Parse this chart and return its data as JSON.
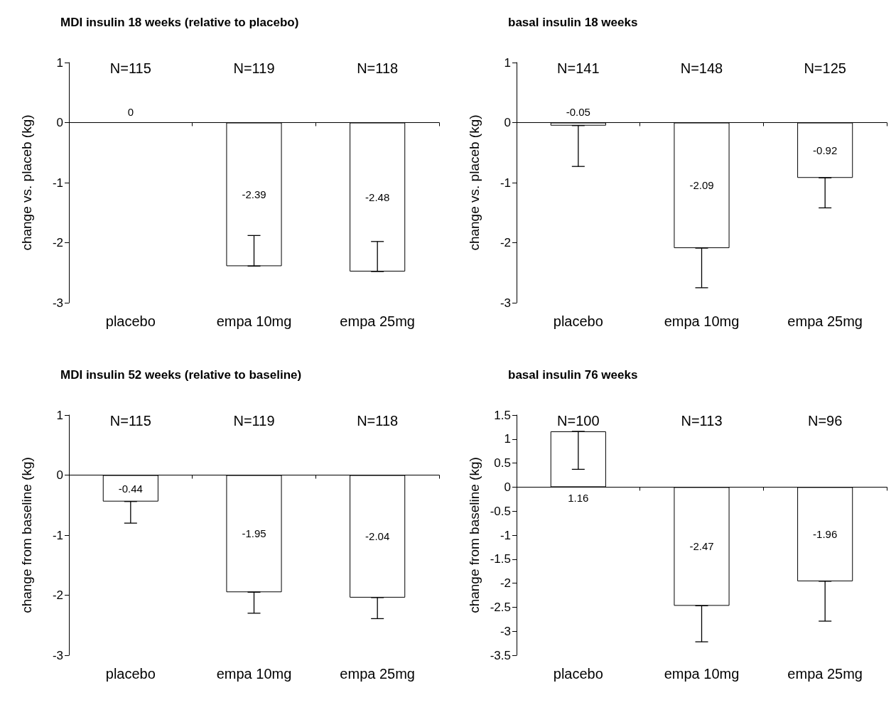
{
  "chart_data": [
    {
      "type": "bar",
      "title": "MDI insulin 18 weeks (relative to placebo)",
      "ylabel": "change vs. placeb (kg)",
      "categories": [
        "placebo",
        "empa 10mg",
        "empa 25mg"
      ],
      "values": [
        0,
        -2.39,
        -2.48
      ],
      "errors": [
        null,
        [
          -2.39,
          -1.88
        ],
        [
          -2.48,
          -1.98
        ]
      ],
      "color": "#ffffff",
      "ylim": [
        -3,
        1
      ],
      "yticks": [
        -3,
        -2,
        -1,
        0,
        1
      ],
      "data_labels": true,
      "annotations": [
        "N=115",
        "N=119",
        "N=118"
      ]
    },
    {
      "type": "bar",
      "title": "basal insulin 18 weeks",
      "ylabel": "change vs. placeb (kg)",
      "categories": [
        "placebo",
        "empa 10mg",
        "empa 25mg"
      ],
      "values": [
        -0.05,
        -2.09,
        -0.92
      ],
      "errors": [
        [
          -0.73,
          -0.05
        ],
        [
          -2.75,
          -2.09
        ],
        [
          -1.42,
          -0.92
        ]
      ],
      "color": "#ffffff",
      "ylim": [
        -3,
        1
      ],
      "yticks": [
        -3,
        -2,
        -1,
        0,
        1
      ],
      "data_labels": true,
      "annotations": [
        "N=141",
        "N=148",
        "N=125"
      ]
    },
    {
      "type": "bar",
      "title": "MDI insulin 52 weeks (relative to baseline)",
      "ylabel": "change from baseline (kg)",
      "categories": [
        "placebo",
        "empa 10mg",
        "empa 25mg"
      ],
      "values": [
        -0.44,
        -1.95,
        -2.04
      ],
      "errors": [
        [
          -0.8,
          -0.44
        ],
        [
          -2.3,
          -1.95
        ],
        [
          -2.39,
          -2.04
        ]
      ],
      "color": "#ffffff",
      "ylim": [
        -3,
        1
      ],
      "yticks": [
        -3,
        -2,
        -1,
        0,
        1
      ],
      "data_labels": true,
      "annotations": [
        "N=115",
        "N=119",
        "N=118"
      ]
    },
    {
      "type": "bar",
      "title": "basal insulin 76 weeks",
      "ylabel": "change from baseline (kg)",
      "categories": [
        "placebo",
        "empa 10mg",
        "empa 25mg"
      ],
      "values": [
        1.16,
        -2.47,
        -1.96
      ],
      "errors": [
        [
          0.37,
          1.16
        ],
        [
          -3.22,
          -2.47
        ],
        [
          -2.79,
          -1.96
        ]
      ],
      "color": "#ffffff",
      "ylim": [
        -3.5,
        1.5
      ],
      "yticks": [
        -3.5,
        -3,
        -2.5,
        -2,
        -1.5,
        -1,
        -0.5,
        0,
        0.5,
        1,
        1.5
      ],
      "data_labels": true,
      "annotations": [
        "N=100",
        "N=113",
        "N=96"
      ]
    }
  ]
}
